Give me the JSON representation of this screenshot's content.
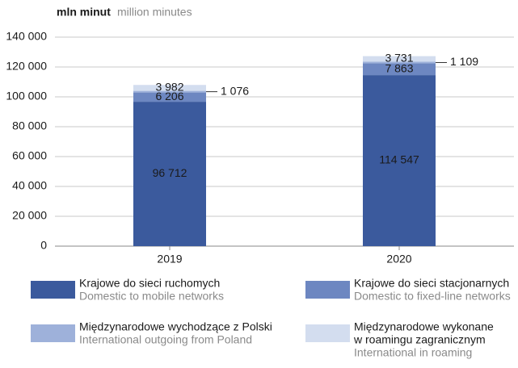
{
  "chart_data": {
    "type": "stacked_bar",
    "y_label": "mln minut",
    "y_label_en": "million minutes",
    "categories": [
      "2019",
      "2020"
    ],
    "series": [
      {
        "name": [
          "Krajowe do sieci ruchomych"
        ],
        "name_en": "Domestic to mobile networks",
        "color": "#3b5a9d",
        "label_color": "#ffffff",
        "values": [
          96712,
          114547
        ],
        "value_labels": [
          "96 712",
          "114 547"
        ]
      },
      {
        "name": [
          "Krajowe do sieci stacjonarnych"
        ],
        "name_en": "Domestic to fixed-line networks",
        "color": "#6d87c1",
        "label_color": "#ffffff",
        "values": [
          6206,
          7863
        ],
        "value_labels": [
          "6 206",
          "7 863"
        ]
      },
      {
        "name": [
          "Międzynarodowe wychodzące z Polski"
        ],
        "name_en": "International outgoing from Poland",
        "color": "#9eb1da",
        "label_color": "#1a1a1a",
        "label_outside": true,
        "values": [
          1076,
          1109
        ],
        "value_labels": [
          "1 076",
          "1 109"
        ]
      },
      {
        "name": [
          "Międzynarodowe wykonane",
          "w roamingu zagranicznym"
        ],
        "name_en": "International in roaming",
        "color": "#d3ddef",
        "label_color": "#1a1a1a",
        "values": [
          3982,
          3731
        ],
        "value_labels": [
          "3 982",
          "3 731"
        ]
      }
    ],
    "ylim": [
      0,
      140000
    ],
    "yticks": [
      0,
      {
        "value": 20000,
        "label": "20 000"
      },
      {
        "value": 40000,
        "label": "40 000"
      },
      {
        "value": 60000,
        "label": "60 000"
      },
      {
        "value": 80000,
        "label": "80 000"
      },
      {
        "value": 100000,
        "label": "100 000"
      },
      {
        "value": 120000,
        "label": "120 000"
      },
      {
        "value": 140000,
        "label": "140 000"
      }
    ],
    "grid": true
  }
}
